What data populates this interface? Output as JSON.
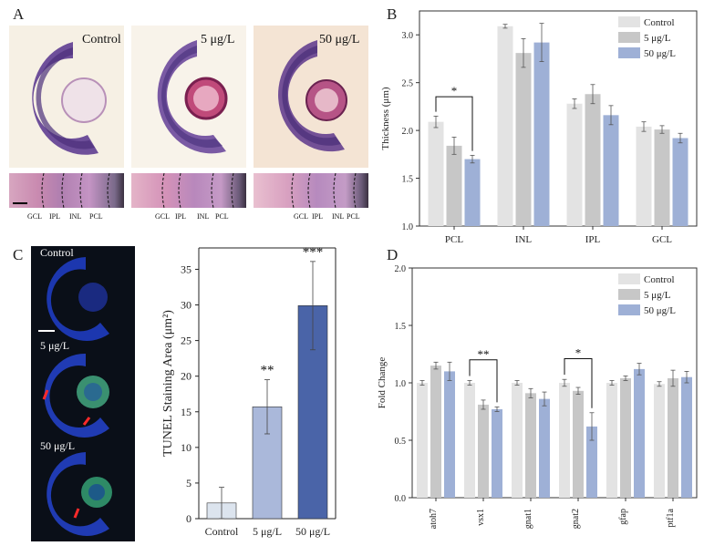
{
  "panels": {
    "a": {
      "letter": "A",
      "images": [
        {
          "label": "Control"
        },
        {
          "label": "5 μg/L"
        },
        {
          "label": "50 μg/L"
        }
      ],
      "layer_labels_1": [
        "GCL",
        "IPL",
        "INL",
        "PCL"
      ],
      "layer_labels_2": [
        "GCL",
        "IPL",
        "INL",
        "PCL"
      ],
      "layer_labels_3": [
        "GCL",
        "IPL",
        "INL",
        "PCL"
      ]
    },
    "b": {
      "letter": "B"
    },
    "c": {
      "letter": "C",
      "images": [
        {
          "label": "Control"
        },
        {
          "label": "5 μg/L"
        },
        {
          "label": "50 μg/L"
        }
      ]
    },
    "d": {
      "letter": "D"
    }
  },
  "colors": {
    "control": "#e3e3e3",
    "low": "#c7c7c7",
    "high": "#9eb0d6",
    "c_control": "#dce4ee",
    "c_low": "#aab8da",
    "c_high": "#4a64a8"
  },
  "chart_data": [
    {
      "id": "B",
      "type": "bar",
      "ylabel": "Thickness (μm)",
      "categories": [
        "PCL",
        "INL",
        "IPL",
        "GCL"
      ],
      "ylim": [
        1.0,
        3.25
      ],
      "yticks": [
        "1.0",
        "1.5",
        "2.0",
        "2.5",
        "3.0"
      ],
      "legend": [
        "Control",
        "5 μg/L",
        "50 μg/L"
      ],
      "legend_position": "top-right",
      "series": [
        {
          "name": "Control",
          "values": [
            2.09,
            3.09,
            2.28,
            2.04
          ],
          "errors": [
            0.06,
            0.02,
            0.05,
            0.05
          ]
        },
        {
          "name": "5 μg/L",
          "values": [
            1.84,
            2.81,
            2.38,
            2.01
          ],
          "errors": [
            0.09,
            0.15,
            0.1,
            0.04
          ]
        },
        {
          "name": "50 μg/L",
          "values": [
            1.7,
            2.92,
            2.16,
            1.92
          ],
          "errors": [
            0.04,
            0.2,
            0.1,
            0.05
          ]
        }
      ],
      "annotations": [
        {
          "text": "*",
          "category": "PCL",
          "from": 0,
          "to": 2
        }
      ]
    },
    {
      "id": "C",
      "type": "bar",
      "ylabel": "TUNEL Staining Area (μm²)",
      "categories": [
        "Control",
        "5 μg/L",
        "50 μg/L"
      ],
      "ylim": [
        0,
        38
      ],
      "yticks": [
        "0",
        "5",
        "10",
        "15",
        "20",
        "25",
        "30",
        "35"
      ],
      "values": [
        2.2,
        15.7,
        29.9
      ],
      "errors": [
        2.2,
        3.8,
        6.2
      ],
      "significance": [
        "",
        "**",
        "***"
      ]
    },
    {
      "id": "D",
      "type": "bar",
      "ylabel": "Fold Change",
      "categories": [
        "atoh7",
        "vsx1",
        "gnat1",
        "gnat2",
        "gfap",
        "ptf1a"
      ],
      "ylim": [
        0,
        2.0
      ],
      "yticks": [
        "0.0",
        "0.5",
        "1.0",
        "1.5",
        "2.0"
      ],
      "legend": [
        "Control",
        "5 μg/L",
        "50 μg/L"
      ],
      "legend_position": "top-right",
      "series": [
        {
          "name": "Control",
          "values": [
            1.0,
            1.0,
            1.0,
            1.0,
            1.0,
            0.99
          ],
          "errors": [
            0.02,
            0.02,
            0.02,
            0.03,
            0.02,
            0.02
          ]
        },
        {
          "name": "5 μg/L",
          "values": [
            1.15,
            0.81,
            0.91,
            0.93,
            1.04,
            1.04
          ],
          "errors": [
            0.03,
            0.04,
            0.04,
            0.03,
            0.02,
            0.07
          ]
        },
        {
          "name": "50 μg/L",
          "values": [
            1.1,
            0.77,
            0.86,
            0.62,
            1.12,
            1.05
          ],
          "errors": [
            0.08,
            0.02,
            0.06,
            0.12,
            0.05,
            0.05
          ]
        }
      ],
      "annotations": [
        {
          "text": "**",
          "category": "vsx1",
          "from": 0,
          "to": 2
        },
        {
          "text": "*",
          "category": "gnat2",
          "from": 0,
          "to": 2
        }
      ]
    }
  ]
}
